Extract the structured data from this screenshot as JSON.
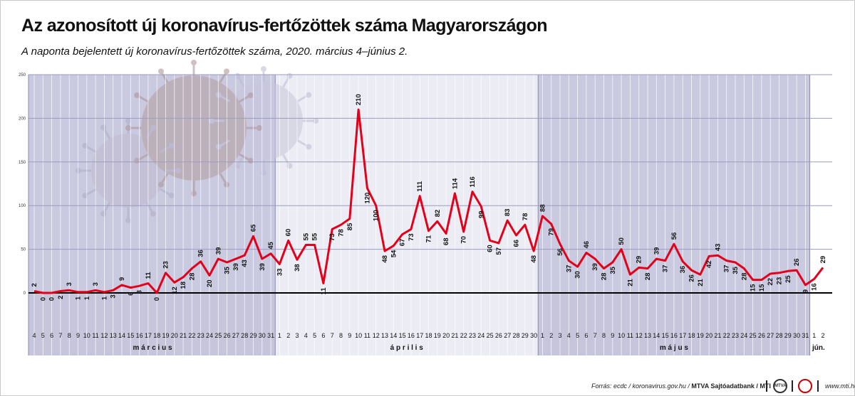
{
  "title": "Az azonosított új koronavírus-fertőzöttek száma Magyarországon",
  "subtitle": "A naponta bejelentett új koronavírus-fertőzöttek száma, 2020. március 4–június 2.",
  "footer": {
    "source": "Forrás: ecdc / koronavirus.gov.hu / ",
    "agency": "MTVA Sajtóadatbank / MTI",
    "logo1": "MTVA",
    "site": "www.mti.hu"
  },
  "colors": {
    "line": "#e3001b",
    "march_band": "#c9c9e0",
    "april_band": "#ececf4",
    "may_band": "#c9c9e0",
    "june_band": "#ffffff"
  },
  "chart_data": {
    "type": "line",
    "ylim": [
      0,
      250
    ],
    "yticks": [
      0,
      50,
      100,
      150,
      200,
      250
    ],
    "grid": true,
    "series": [
      {
        "values": [
          2,
          0,
          0,
          2,
          3,
          1,
          1,
          3,
          1,
          3,
          9,
          6,
          8,
          11,
          0,
          23,
          12,
          18,
          28,
          36,
          20,
          39,
          35,
          39,
          43,
          65,
          39,
          45,
          33,
          60,
          38,
          55,
          55,
          11,
          73,
          78,
          85,
          210,
          120,
          100,
          48,
          54,
          67,
          73,
          111,
          71,
          82,
          68,
          114,
          70,
          116,
          99,
          60,
          57,
          83,
          66,
          78,
          48,
          88,
          79,
          56,
          37,
          30,
          46,
          39,
          28,
          35,
          50,
          21,
          29,
          28,
          39,
          37,
          56,
          36,
          26,
          21,
          42,
          43,
          37,
          35,
          28,
          15,
          15,
          22,
          23,
          25,
          26,
          9,
          16,
          29
        ]
      }
    ],
    "x_day_labels": [
      "4",
      "5",
      "6",
      "7",
      "8",
      "9",
      "10",
      "11",
      "12",
      "13",
      "14",
      "15",
      "16",
      "17",
      "18",
      "19",
      "20",
      "21",
      "22",
      "23",
      "24",
      "25",
      "26",
      "27",
      "28",
      "29",
      "30",
      "31",
      "1",
      "2",
      "3",
      "4",
      "5",
      "6",
      "7",
      "8",
      "9",
      "10",
      "11",
      "12",
      "13",
      "14",
      "15",
      "16",
      "17",
      "18",
      "19",
      "20",
      "21",
      "22",
      "23",
      "24",
      "25",
      "26",
      "27",
      "28",
      "29",
      "30",
      "1",
      "2",
      "3",
      "4",
      "5",
      "6",
      "7",
      "8",
      "9",
      "10",
      "11",
      "12",
      "13",
      "14",
      "15",
      "16",
      "17",
      "18",
      "19",
      "20",
      "21",
      "22",
      "23",
      "24",
      "25",
      "26",
      "27",
      "28",
      "29",
      "30",
      "31",
      "1",
      "2"
    ],
    "months": [
      {
        "name": "m á r c i u s",
        "start": 0,
        "end": 27,
        "band": "march_band"
      },
      {
        "name": "á p r i l i s",
        "start": 28,
        "end": 57,
        "band": "april_band"
      },
      {
        "name": "m á j u s",
        "start": 58,
        "end": 88,
        "band": "may_band"
      },
      {
        "name": "jún.",
        "start": 89,
        "end": 90,
        "band": "june_band"
      }
    ]
  }
}
